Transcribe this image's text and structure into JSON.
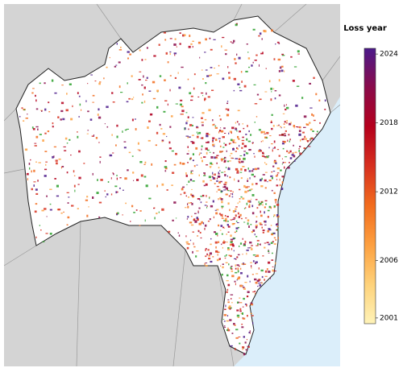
{
  "colorbar": {
    "title": "Loss year",
    "lim": [
      2000.5,
      2024.5
    ],
    "ticks": [
      2001,
      2006,
      2012,
      2018,
      2024
    ],
    "colors": [
      "#fff3b8",
      "#fed27a",
      "#fda040",
      "#f26c1d",
      "#d7301f",
      "#b5001c",
      "#8a0a4a",
      "#4b1a8a"
    ]
  }
}
